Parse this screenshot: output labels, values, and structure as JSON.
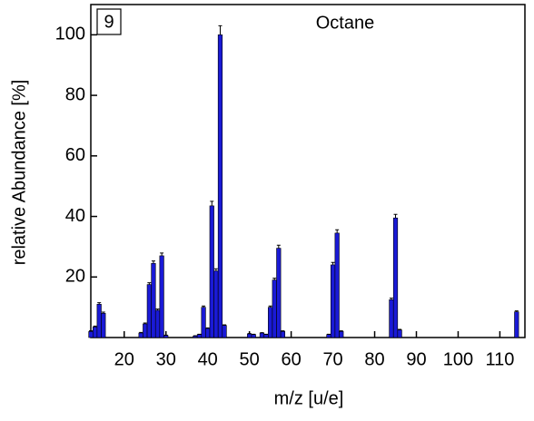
{
  "chart_data": {
    "type": "bar",
    "panel_label": "9",
    "title": "Octane",
    "x_label": "m/z [u/e]",
    "y_label": "relative Abundance [%]",
    "x": [
      12,
      13,
      14,
      15,
      24,
      25,
      26,
      27,
      28,
      29,
      30,
      37,
      38,
      39,
      40,
      41,
      42,
      43,
      44,
      50,
      51,
      53,
      54,
      55,
      56,
      57,
      58,
      69,
      70,
      71,
      72,
      84,
      85,
      86,
      114
    ],
    "values": [
      2,
      3.5,
      11,
      8,
      1.5,
      4.5,
      17.5,
      24.5,
      9,
      27,
      0.7,
      0.5,
      1,
      10,
      3,
      43.5,
      22,
      100,
      4,
      1.2,
      1,
      1.5,
      1,
      10,
      19,
      29.5,
      2,
      1,
      24,
      34.5,
      2,
      12.5,
      39.5,
      2.5,
      8.5
    ],
    "errors": [
      0.2,
      0.3,
      0.5,
      0.4,
      0.2,
      0.3,
      0.6,
      0.8,
      0.4,
      0.9,
      0.1,
      0.1,
      0.1,
      0.4,
      0.2,
      1.5,
      0.7,
      3,
      0.2,
      0.1,
      0.1,
      0.1,
      0.1,
      0.4,
      0.6,
      1,
      0.2,
      0.1,
      0.8,
      1.1,
      0.2,
      0.5,
      1.2,
      0.2,
      0.3
    ],
    "color": "#1a1ad6",
    "xlim": [
      12,
      116
    ],
    "xticks": [
      20,
      30,
      40,
      50,
      60,
      70,
      80,
      90,
      100,
      110
    ],
    "ylim": [
      0,
      110
    ],
    "yticks": [
      20,
      40,
      60,
      80,
      100
    ]
  }
}
